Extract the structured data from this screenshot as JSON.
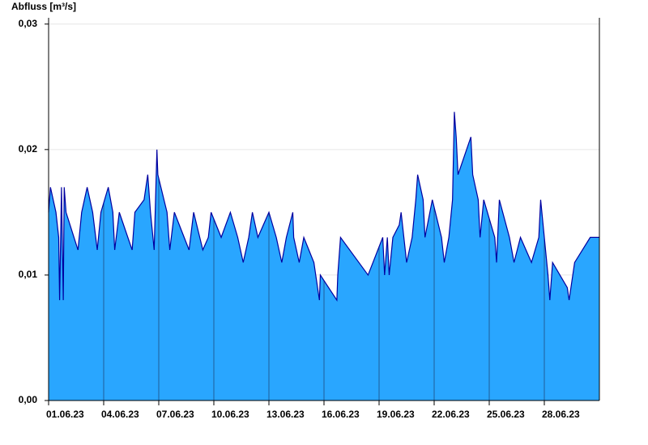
{
  "chart_data": {
    "type": "area",
    "title": "Abfluss [m³/s]",
    "x": [
      0,
      0.1,
      0.4,
      0.55,
      0.6,
      0.7,
      0.8,
      0.85,
      0.95,
      1.6,
      1.8,
      2.1,
      2.4,
      2.65,
      2.85,
      3.25,
      3.5,
      3.6,
      3.85,
      4.55,
      4.7,
      5.2,
      5.3,
      5.4,
      5.55,
      5.75,
      5.9,
      5.95,
      6.45,
      6.6,
      6.85,
      7.65,
      7.9,
      8.4,
      8.7,
      8.85,
      9.4,
      9.9,
      10.3,
      10.6,
      10.9,
      11.1,
      11.4,
      12.0,
      12.4,
      12.7,
      12.95,
      13.3,
      13.35,
      13.65,
      13.9,
      14.45,
      14.55,
      14.75,
      14.8,
      15.7,
      15.75,
      15.9,
      17.4,
      18.2,
      18.3,
      18.45,
      18.55,
      18.75,
      19.1,
      19.2,
      19.35,
      19.5,
      19.8,
      20.0,
      20.1,
      20.4,
      20.5,
      20.9,
      21.4,
      21.55,
      21.8,
      22.0,
      22.1,
      22.2,
      22.3,
      23.0,
      23.1,
      23.4,
      23.5,
      23.7,
      24.3,
      24.4,
      24.55,
      25.1,
      25.35,
      25.7,
      26.3,
      26.7,
      26.8,
      27.0,
      27.2,
      27.3,
      27.45,
      28.25,
      28.35,
      28.65,
      29.5,
      30
    ],
    "series": [
      {
        "color": "#29a6ff",
        "line_color": "#0000a0",
        "values": [
          0.015,
          0.017,
          0.015,
          0.013,
          0.008,
          0.017,
          0.008,
          0.017,
          0.015,
          0.012,
          0.015,
          0.017,
          0.015,
          0.012,
          0.015,
          0.017,
          0.015,
          0.012,
          0.015,
          0.012,
          0.015,
          0.016,
          0.017,
          0.018,
          0.015,
          0.012,
          0.02,
          0.018,
          0.015,
          0.012,
          0.015,
          0.012,
          0.015,
          0.012,
          0.013,
          0.015,
          0.013,
          0.015,
          0.013,
          0.011,
          0.013,
          0.015,
          0.013,
          0.015,
          0.013,
          0.011,
          0.013,
          0.015,
          0.013,
          0.011,
          0.013,
          0.011,
          0.01,
          0.008,
          0.01,
          0.008,
          0.01,
          0.013,
          0.01,
          0.013,
          0.01,
          0.013,
          0.01,
          0.013,
          0.014,
          0.015,
          0.013,
          0.011,
          0.013,
          0.016,
          0.018,
          0.016,
          0.013,
          0.016,
          0.013,
          0.011,
          0.013,
          0.016,
          0.023,
          0.021,
          0.018,
          0.021,
          0.018,
          0.016,
          0.013,
          0.016,
          0.013,
          0.011,
          0.016,
          0.013,
          0.011,
          0.013,
          0.011,
          0.013,
          0.016,
          0.013,
          0.01,
          0.008,
          0.011,
          0.009,
          0.008,
          0.011,
          0.013,
          0.013
        ]
      }
    ],
    "xlim": [
      0,
      30
    ],
    "xticks": [
      {
        "value": 0,
        "label": "01.06.23"
      },
      {
        "value": 3,
        "label": "04.06.23"
      },
      {
        "value": 6,
        "label": "07.06.23"
      },
      {
        "value": 9,
        "label": "10.06.23"
      },
      {
        "value": 12,
        "label": "13.06.23"
      },
      {
        "value": 15,
        "label": "16.06.23"
      },
      {
        "value": 18,
        "label": "19.06.23"
      },
      {
        "value": 21,
        "label": "22.06.23"
      },
      {
        "value": 24,
        "label": "25.06.23"
      },
      {
        "value": 27,
        "label": "28.06.23"
      }
    ],
    "ylim": [
      0,
      0.0305
    ],
    "yticks": [
      {
        "value": 0,
        "label": "0,00"
      },
      {
        "value": 0.01,
        "label": "0,01"
      },
      {
        "value": 0.02,
        "label": "0,02"
      },
      {
        "value": 0.03,
        "label": "0,03"
      }
    ],
    "grid": true
  }
}
